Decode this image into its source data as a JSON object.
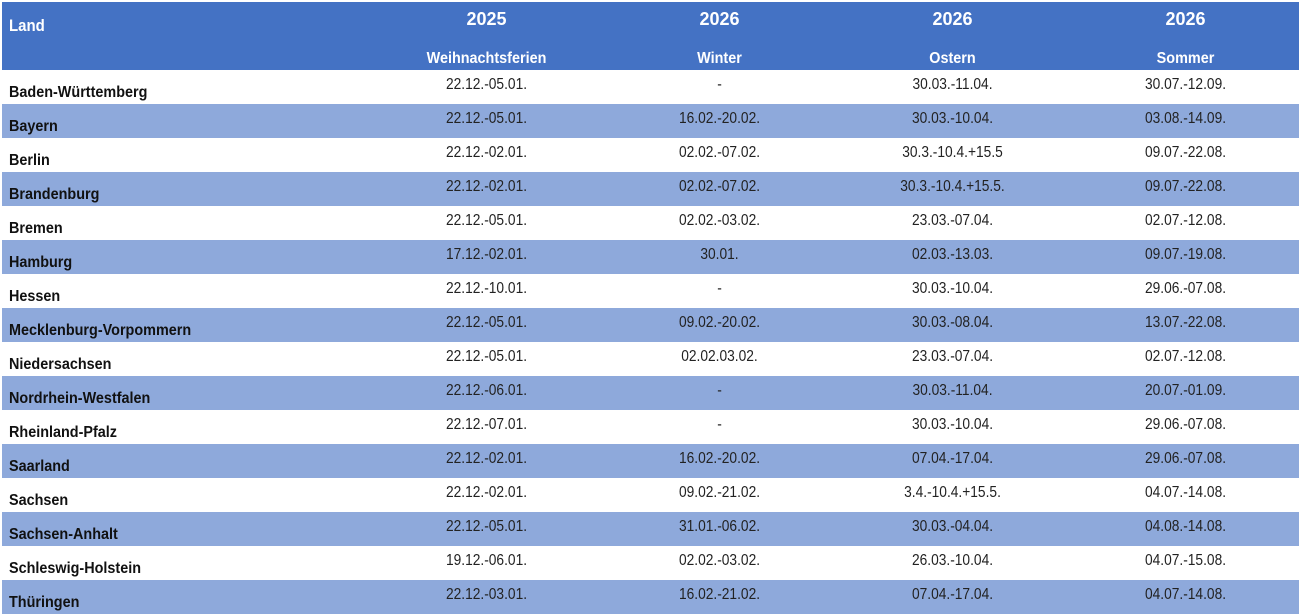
{
  "colors": {
    "header": "#4472C4",
    "band": "#8EA9DB"
  },
  "header": {
    "land": "Land",
    "columns": [
      {
        "year": "2025",
        "name": "Weihnachtsferien"
      },
      {
        "year": "2026",
        "name": "Winter"
      },
      {
        "year": "2026",
        "name": "Ostern"
      },
      {
        "year": "2026",
        "name": "Sommer"
      }
    ]
  },
  "rows": [
    {
      "land": "Baden-Württemberg",
      "values": [
        "22.12.-05.01.",
        "-",
        "30.03.-11.04.",
        "30.07.-12.09."
      ]
    },
    {
      "land": "Bayern",
      "values": [
        "22.12.-05.01.",
        "16.02.-20.02.",
        "30.03.-10.04.",
        "03.08.-14.09."
      ]
    },
    {
      "land": "Berlin",
      "values": [
        "22.12.-02.01.",
        "02.02.-07.02.",
        "30.3.-10.4.+15.5",
        "09.07.-22.08."
      ]
    },
    {
      "land": "Brandenburg",
      "values": [
        "22.12.-02.01.",
        "02.02.-07.02.",
        "30.3.-10.4.+15.5.",
        "09.07.-22.08."
      ]
    },
    {
      "land": "Bremen",
      "values": [
        "22.12.-05.01.",
        "02.02.-03.02.",
        "23.03.-07.04.",
        "02.07.-12.08."
      ]
    },
    {
      "land": "Hamburg",
      "values": [
        "17.12.-02.01.",
        "30.01.",
        "02.03.-13.03.",
        "09.07.-19.08."
      ]
    },
    {
      "land": "Hessen",
      "values": [
        "22.12.-10.01.",
        "-",
        "30.03.-10.04.",
        "29.06.-07.08."
      ]
    },
    {
      "land": "Mecklenburg-Vorpommern",
      "values": [
        "22.12.-05.01.",
        "09.02.-20.02.",
        "30.03.-08.04.",
        "13.07.-22.08."
      ]
    },
    {
      "land": "Niedersachsen",
      "values": [
        "22.12.-05.01.",
        "02.02.03.02.",
        "23.03.-07.04.",
        "02.07.-12.08."
      ]
    },
    {
      "land": "Nordrhein-Westfalen",
      "values": [
        "22.12.-06.01.",
        "-",
        "30.03.-11.04.",
        "20.07.-01.09."
      ]
    },
    {
      "land": "Rheinland-Pfalz",
      "values": [
        "22.12.-07.01.",
        "-",
        "30.03.-10.04.",
        "29.06.-07.08."
      ]
    },
    {
      "land": "Saarland",
      "values": [
        "22.12.-02.01.",
        "16.02.-20.02.",
        "07.04.-17.04.",
        "29.06.-07.08."
      ]
    },
    {
      "land": "Sachsen",
      "values": [
        "22.12.-02.01.",
        "09.02.-21.02.",
        "3.4.-10.4.+15.5.",
        "04.07.-14.08."
      ]
    },
    {
      "land": "Sachsen-Anhalt",
      "values": [
        "22.12.-05.01.",
        "31.01.-06.02.",
        "30.03.-04.04.",
        "04.08.-14.08."
      ]
    },
    {
      "land": "Schleswig-Holstein",
      "values": [
        "19.12.-06.01.",
        "02.02.-03.02.",
        "26.03.-10.04.",
        "04.07.-15.08."
      ]
    },
    {
      "land": "Thüringen",
      "values": [
        "22.12.-03.01.",
        "16.02.-21.02.",
        "07.04.-17.04.",
        "04.07.-14.08."
      ]
    }
  ]
}
